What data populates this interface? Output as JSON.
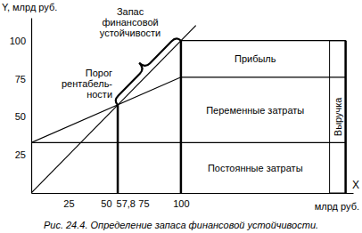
{
  "chart_data": {
    "type": "line",
    "title": "Рис. 24.4. Определение запаса финансовой устойчивости.",
    "ylabel": "Y, млрд руб.",
    "xlabel": "X",
    "xunit": "млрд руб.",
    "xlim": [
      0,
      215
    ],
    "ylim": [
      0,
      115
    ],
    "xticks": [
      25,
      50,
      {
        "value": 57.8,
        "label": "57,8"
      },
      75,
      100
    ],
    "yticks": [
      25,
      50,
      75,
      100
    ],
    "grid": false,
    "series": [
      {
        "name": "Выручка",
        "x": [
          0,
          110
        ],
        "values": [
          0,
          110
        ],
        "color": "#000000"
      },
      {
        "name": "Постоянные затраты",
        "x": [
          0,
          210
        ],
        "values": [
          33,
          33
        ],
        "color": "#000000"
      },
      {
        "name": "Переменные затраты",
        "x": [
          0,
          100,
          210
        ],
        "values": [
          33,
          76,
          76
        ],
        "color": "#000000"
      },
      {
        "name": "Прибыль",
        "x": [
          100,
          210
        ],
        "values": [
          100,
          100
        ],
        "color": "#000000"
      }
    ],
    "vlines": [
      {
        "x": 57.8,
        "y": 57.8
      },
      {
        "x": 100,
        "y": 100
      },
      {
        "x": 210,
        "y": 100
      }
    ],
    "annotations": [
      {
        "lines": [
          "Порог",
          "рентабель-",
          "ности"
        ],
        "x": 57.8,
        "y": 57.8
      },
      {
        "lines": [
          "Запас",
          "финансовой",
          "устойчивости"
        ],
        "x": [
          57.8,
          100
        ],
        "y": [
          57.8,
          100
        ]
      }
    ]
  }
}
